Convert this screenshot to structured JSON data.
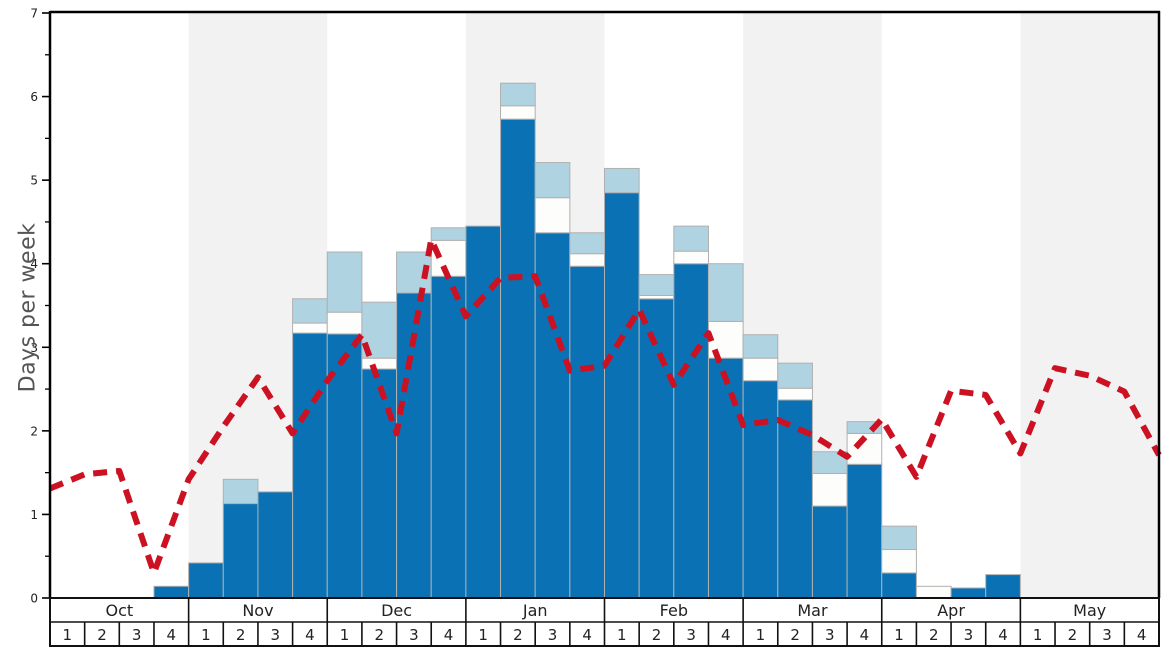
{
  "chart_data": {
    "type": "bar",
    "title": "",
    "ylabel": "Days per week",
    "ylim": [
      0,
      7
    ],
    "ytick_labels": [
      "0",
      "1",
      "2",
      "3",
      "4",
      "5",
      "6",
      "7"
    ],
    "grid": false,
    "legend": "none",
    "months": [
      "Oct",
      "Nov",
      "Dec",
      "Jan",
      "Feb",
      "Mar",
      "Apr",
      "May"
    ],
    "weeks_per_month": 4,
    "week_labels": [
      "1",
      "2",
      "3",
      "4"
    ],
    "shaded_month_indexes": [
      1,
      3,
      5,
      7
    ],
    "categories": [
      "Oct-1",
      "Oct-2",
      "Oct-3",
      "Oct-4",
      "Nov-1",
      "Nov-2",
      "Nov-3",
      "Nov-4",
      "Dec-1",
      "Dec-2",
      "Dec-3",
      "Dec-4",
      "Jan-1",
      "Jan-2",
      "Jan-3",
      "Jan-4",
      "Feb-1",
      "Feb-2",
      "Feb-3",
      "Feb-4",
      "Mar-1",
      "Mar-2",
      "Mar-3",
      "Mar-4",
      "Apr-1",
      "Apr-2",
      "Apr-3",
      "Apr-4",
      "May-1",
      "May-2",
      "May-3",
      "May-4"
    ],
    "series": [
      {
        "name": "dark-blue-days",
        "color": "#0a72b4",
        "values": [
          0,
          0,
          0,
          0.14,
          0.42,
          1.13,
          1.27,
          3.17,
          3.16,
          2.74,
          3.65,
          3.85,
          4.45,
          5.73,
          4.37,
          3.97,
          4.85,
          3.58,
          4.0,
          2.87,
          2.6,
          2.37,
          1.1,
          1.6,
          0.3,
          0,
          0.12,
          0.28,
          0,
          0,
          0,
          0
        ]
      },
      {
        "name": "white-days",
        "color": "#fdfdfb",
        "values": [
          0,
          0,
          0,
          0,
          0,
          0,
          0,
          0.12,
          0.26,
          0.13,
          0,
          0.43,
          0,
          0.16,
          0.42,
          0.15,
          0,
          0.04,
          0.15,
          0.44,
          0.27,
          0.14,
          0.39,
          0.37,
          0.28,
          0.14,
          0,
          0,
          0,
          0,
          0,
          0
        ]
      },
      {
        "name": "light-blue-days",
        "color": "#b0d3e2",
        "values": [
          0,
          0,
          0,
          0,
          0,
          0.29,
          0,
          0.29,
          0.72,
          0.67,
          0.49,
          0.15,
          0,
          0.27,
          0.42,
          0.25,
          0.29,
          0.25,
          0.3,
          0.69,
          0.28,
          0.3,
          0.26,
          0.14,
          0.28,
          0,
          0,
          0,
          0,
          0,
          0,
          0
        ]
      }
    ],
    "line": {
      "name": "red-dashed-line",
      "color": "#cc1122",
      "style": "dashed",
      "x_unit": "week-boundaries (0..32)",
      "values": [
        1.31,
        1.48,
        1.52,
        0.3,
        1.42,
        2.05,
        2.64,
        1.97,
        2.6,
        3.15,
        1.97,
        4.29,
        3.37,
        3.83,
        3.85,
        2.72,
        2.78,
        3.45,
        2.55,
        3.17,
        2.07,
        2.13,
        1.95,
        1.69,
        2.14,
        1.45,
        2.48,
        2.43,
        1.73,
        2.75,
        2.66,
        2.47,
        1.71
      ]
    },
    "colors": {
      "band_shade": "#f2f2f2",
      "bar_border": "#b0b0b0",
      "axis": "#000000",
      "zero_line": "#888888",
      "table_border": "#111111",
      "tick_text": "#222222"
    }
  }
}
